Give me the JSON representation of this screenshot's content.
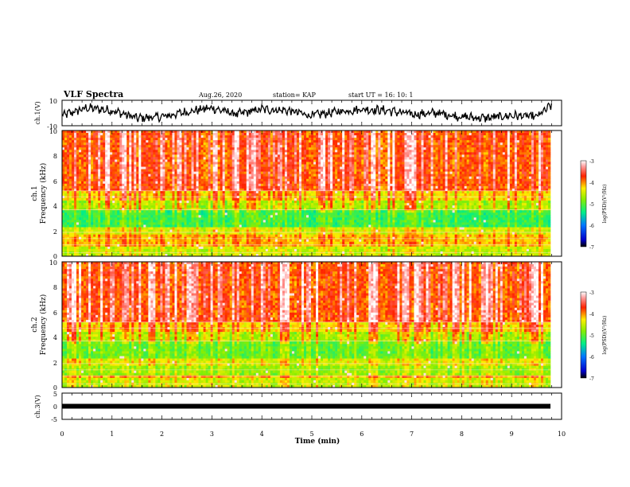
{
  "header": {
    "title": "VLF Spectra",
    "date": "Aug.26, 2020",
    "station": "station= KAP",
    "start": "start  UT =   16: 10: 1"
  },
  "chart_data": [
    {
      "id": "ch1-waveform",
      "type": "line",
      "ylabel": "ch.1(V)",
      "xlim": [
        0,
        9.8
      ],
      "ylim": [
        -10,
        10
      ],
      "yticks": [
        "10",
        "-10"
      ],
      "description_values": {
        "x": [
          0,
          0.5,
          1,
          1.5,
          2,
          2.5,
          3,
          3.5,
          4,
          4.5,
          5,
          5.5,
          6,
          6.5,
          7,
          7.5,
          8,
          8.5,
          9,
          9.5,
          9.8
        ],
        "y": [
          -2,
          4,
          2,
          -4,
          -3,
          1,
          4,
          -1,
          3,
          2,
          -2,
          1,
          3,
          2,
          -1,
          0,
          -3,
          -4,
          -2,
          -3,
          6
        ]
      }
    },
    {
      "id": "ch1-spectrogram",
      "type": "heatmap",
      "channel_label": "ch.1",
      "ylabel": "Frequency (kHz)",
      "ylim": [
        0,
        10
      ],
      "yticks": [
        "0",
        "2",
        "4",
        "6",
        "8",
        "10"
      ],
      "colorbar": {
        "label": "log(PSD)(V²/Hz)",
        "range": [
          -7,
          -3
        ],
        "ticks": [
          "-3",
          "-4",
          "-5",
          "-6",
          "-7"
        ]
      }
    },
    {
      "id": "ch2-spectrogram",
      "type": "heatmap",
      "channel_label": "ch.2",
      "ylabel": "Frequency (kHz)",
      "ylim": [
        0,
        10
      ],
      "yticks": [
        "0",
        "2",
        "4",
        "6",
        "8",
        "10"
      ],
      "colorbar": {
        "label": "log(PSD)(V²/Hz)",
        "range": [
          -7,
          -3
        ],
        "ticks": [
          "-3",
          "-4",
          "-5",
          "-6",
          "-7"
        ]
      }
    },
    {
      "id": "ch3-waveform",
      "type": "line",
      "ylabel": "ch.3(V)",
      "xlabel": "Time (min)",
      "xlim": [
        0,
        10
      ],
      "ylim": [
        -5,
        5
      ],
      "yticks": [
        "5",
        "0",
        "-5"
      ],
      "xticks": [
        "0",
        "1",
        "2",
        "3",
        "4",
        "5",
        "6",
        "7",
        "8",
        "9",
        "10"
      ],
      "constant_value": 0
    }
  ]
}
